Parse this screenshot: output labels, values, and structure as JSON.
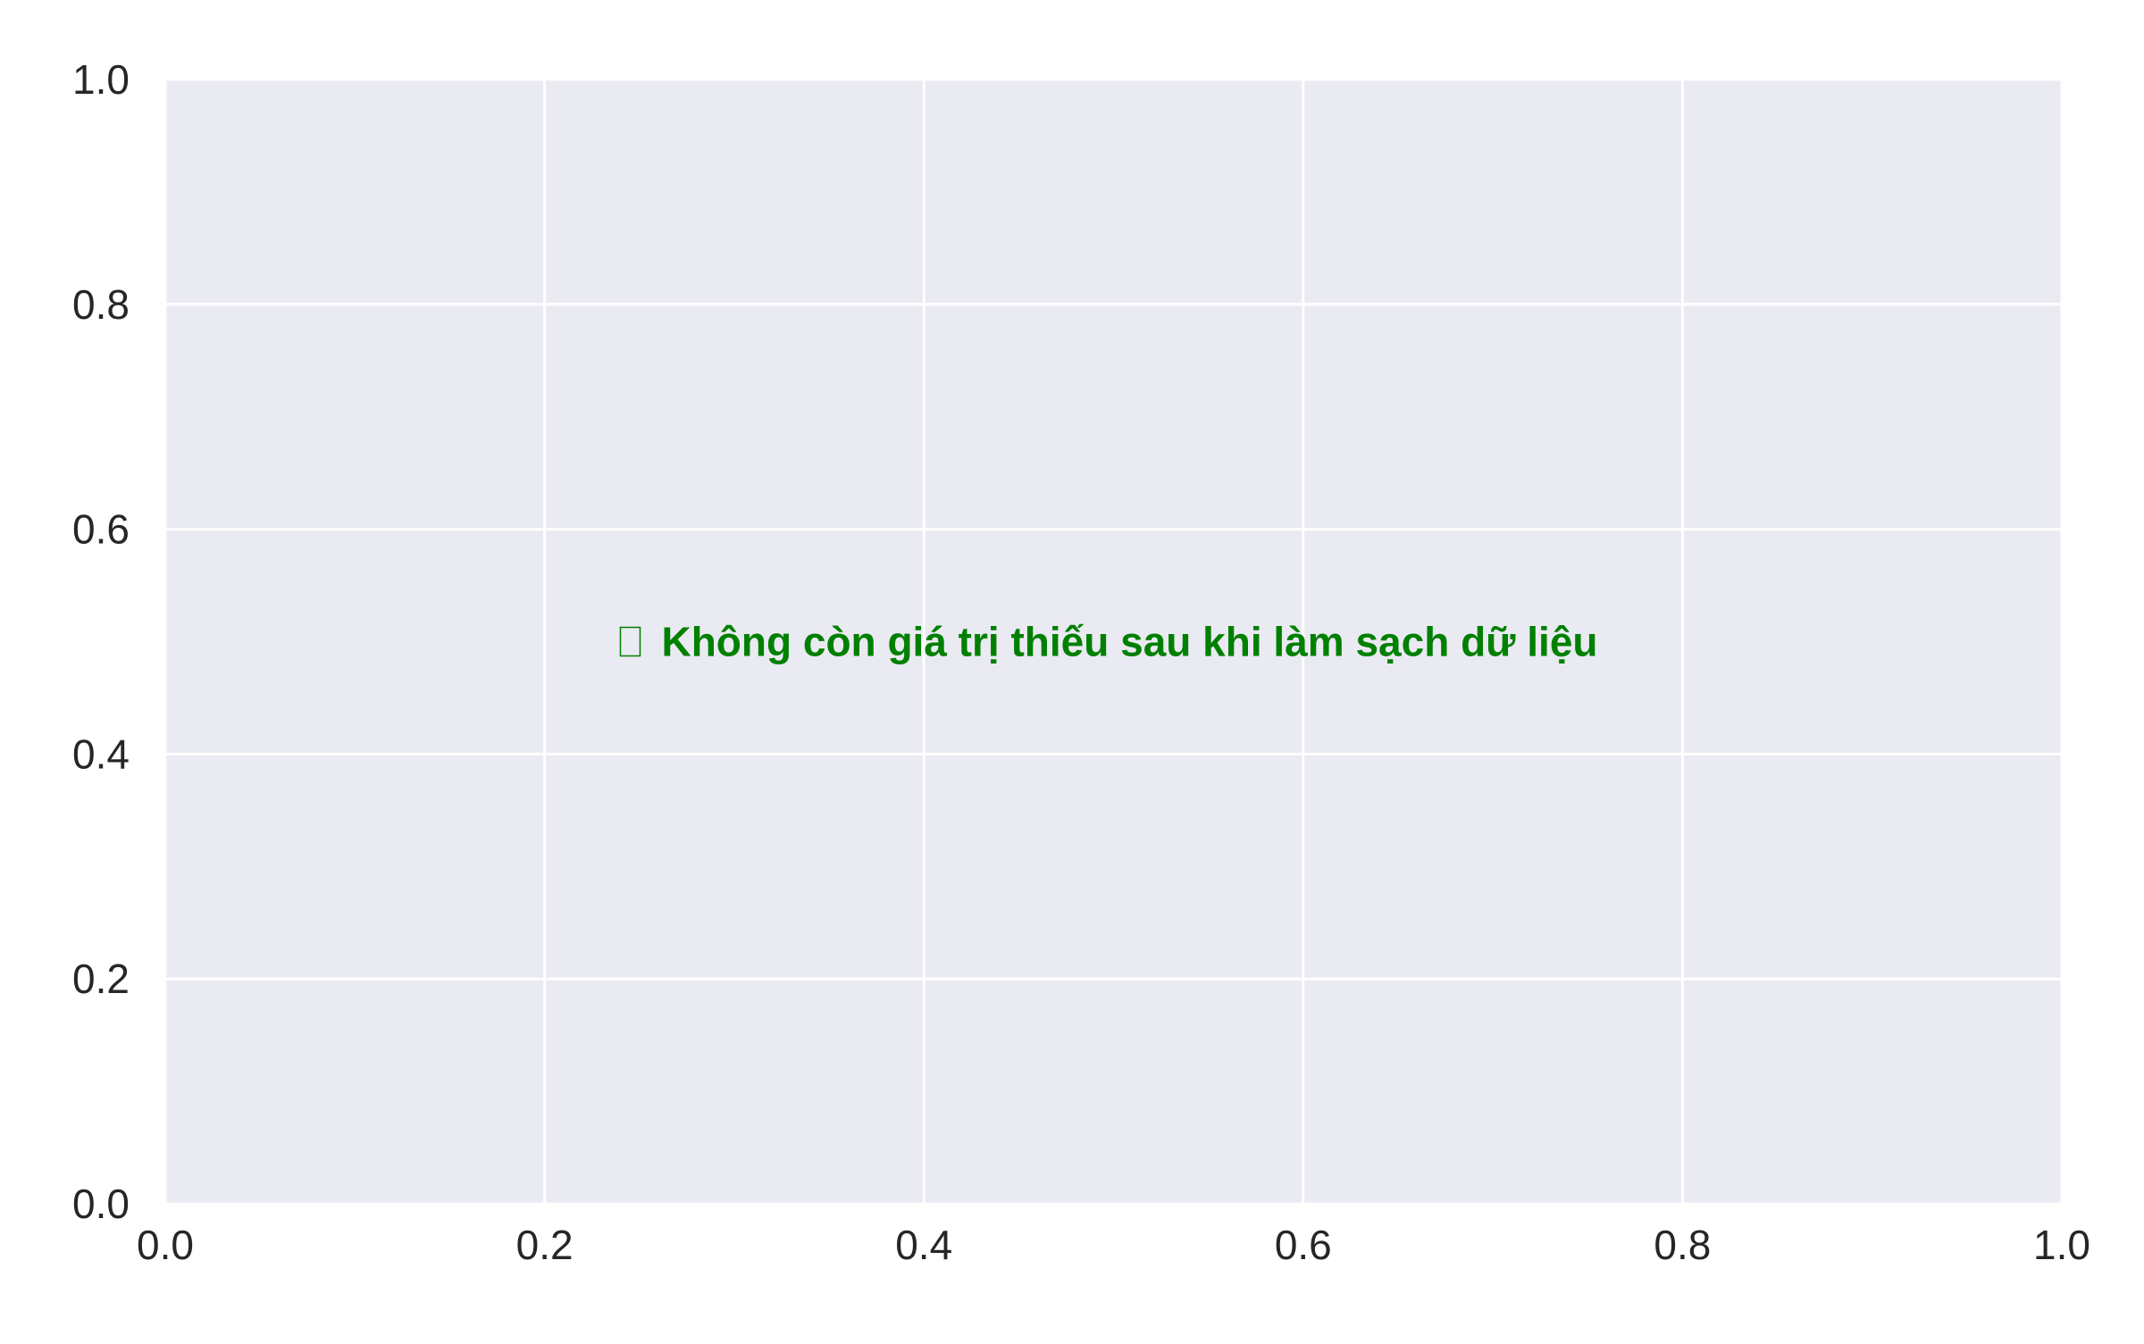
{
  "chart_data": {
    "type": "scatter",
    "title": "",
    "xlabel": "",
    "ylabel": "",
    "xlim": [
      0.0,
      1.0
    ],
    "ylim": [
      0.0,
      1.0
    ],
    "x_ticks": [
      "0.0",
      "0.2",
      "0.4",
      "0.6",
      "0.8",
      "1.0"
    ],
    "y_ticks": [
      "0.0",
      "0.2",
      "0.4",
      "0.6",
      "0.8",
      "1.0"
    ],
    "grid": true,
    "series": [],
    "annotations": [
      {
        "text": "Không còn giá trị thiếu sau khi làm sạch dữ liệu",
        "icon": "check-icon",
        "x": 0.5,
        "y": 0.5,
        "color": "#008000"
      }
    ]
  },
  "colors": {
    "plot_background": "#EAEAF2",
    "grid": "#FFFFFF",
    "tick_text": "#262626",
    "annotation": "#008000"
  }
}
